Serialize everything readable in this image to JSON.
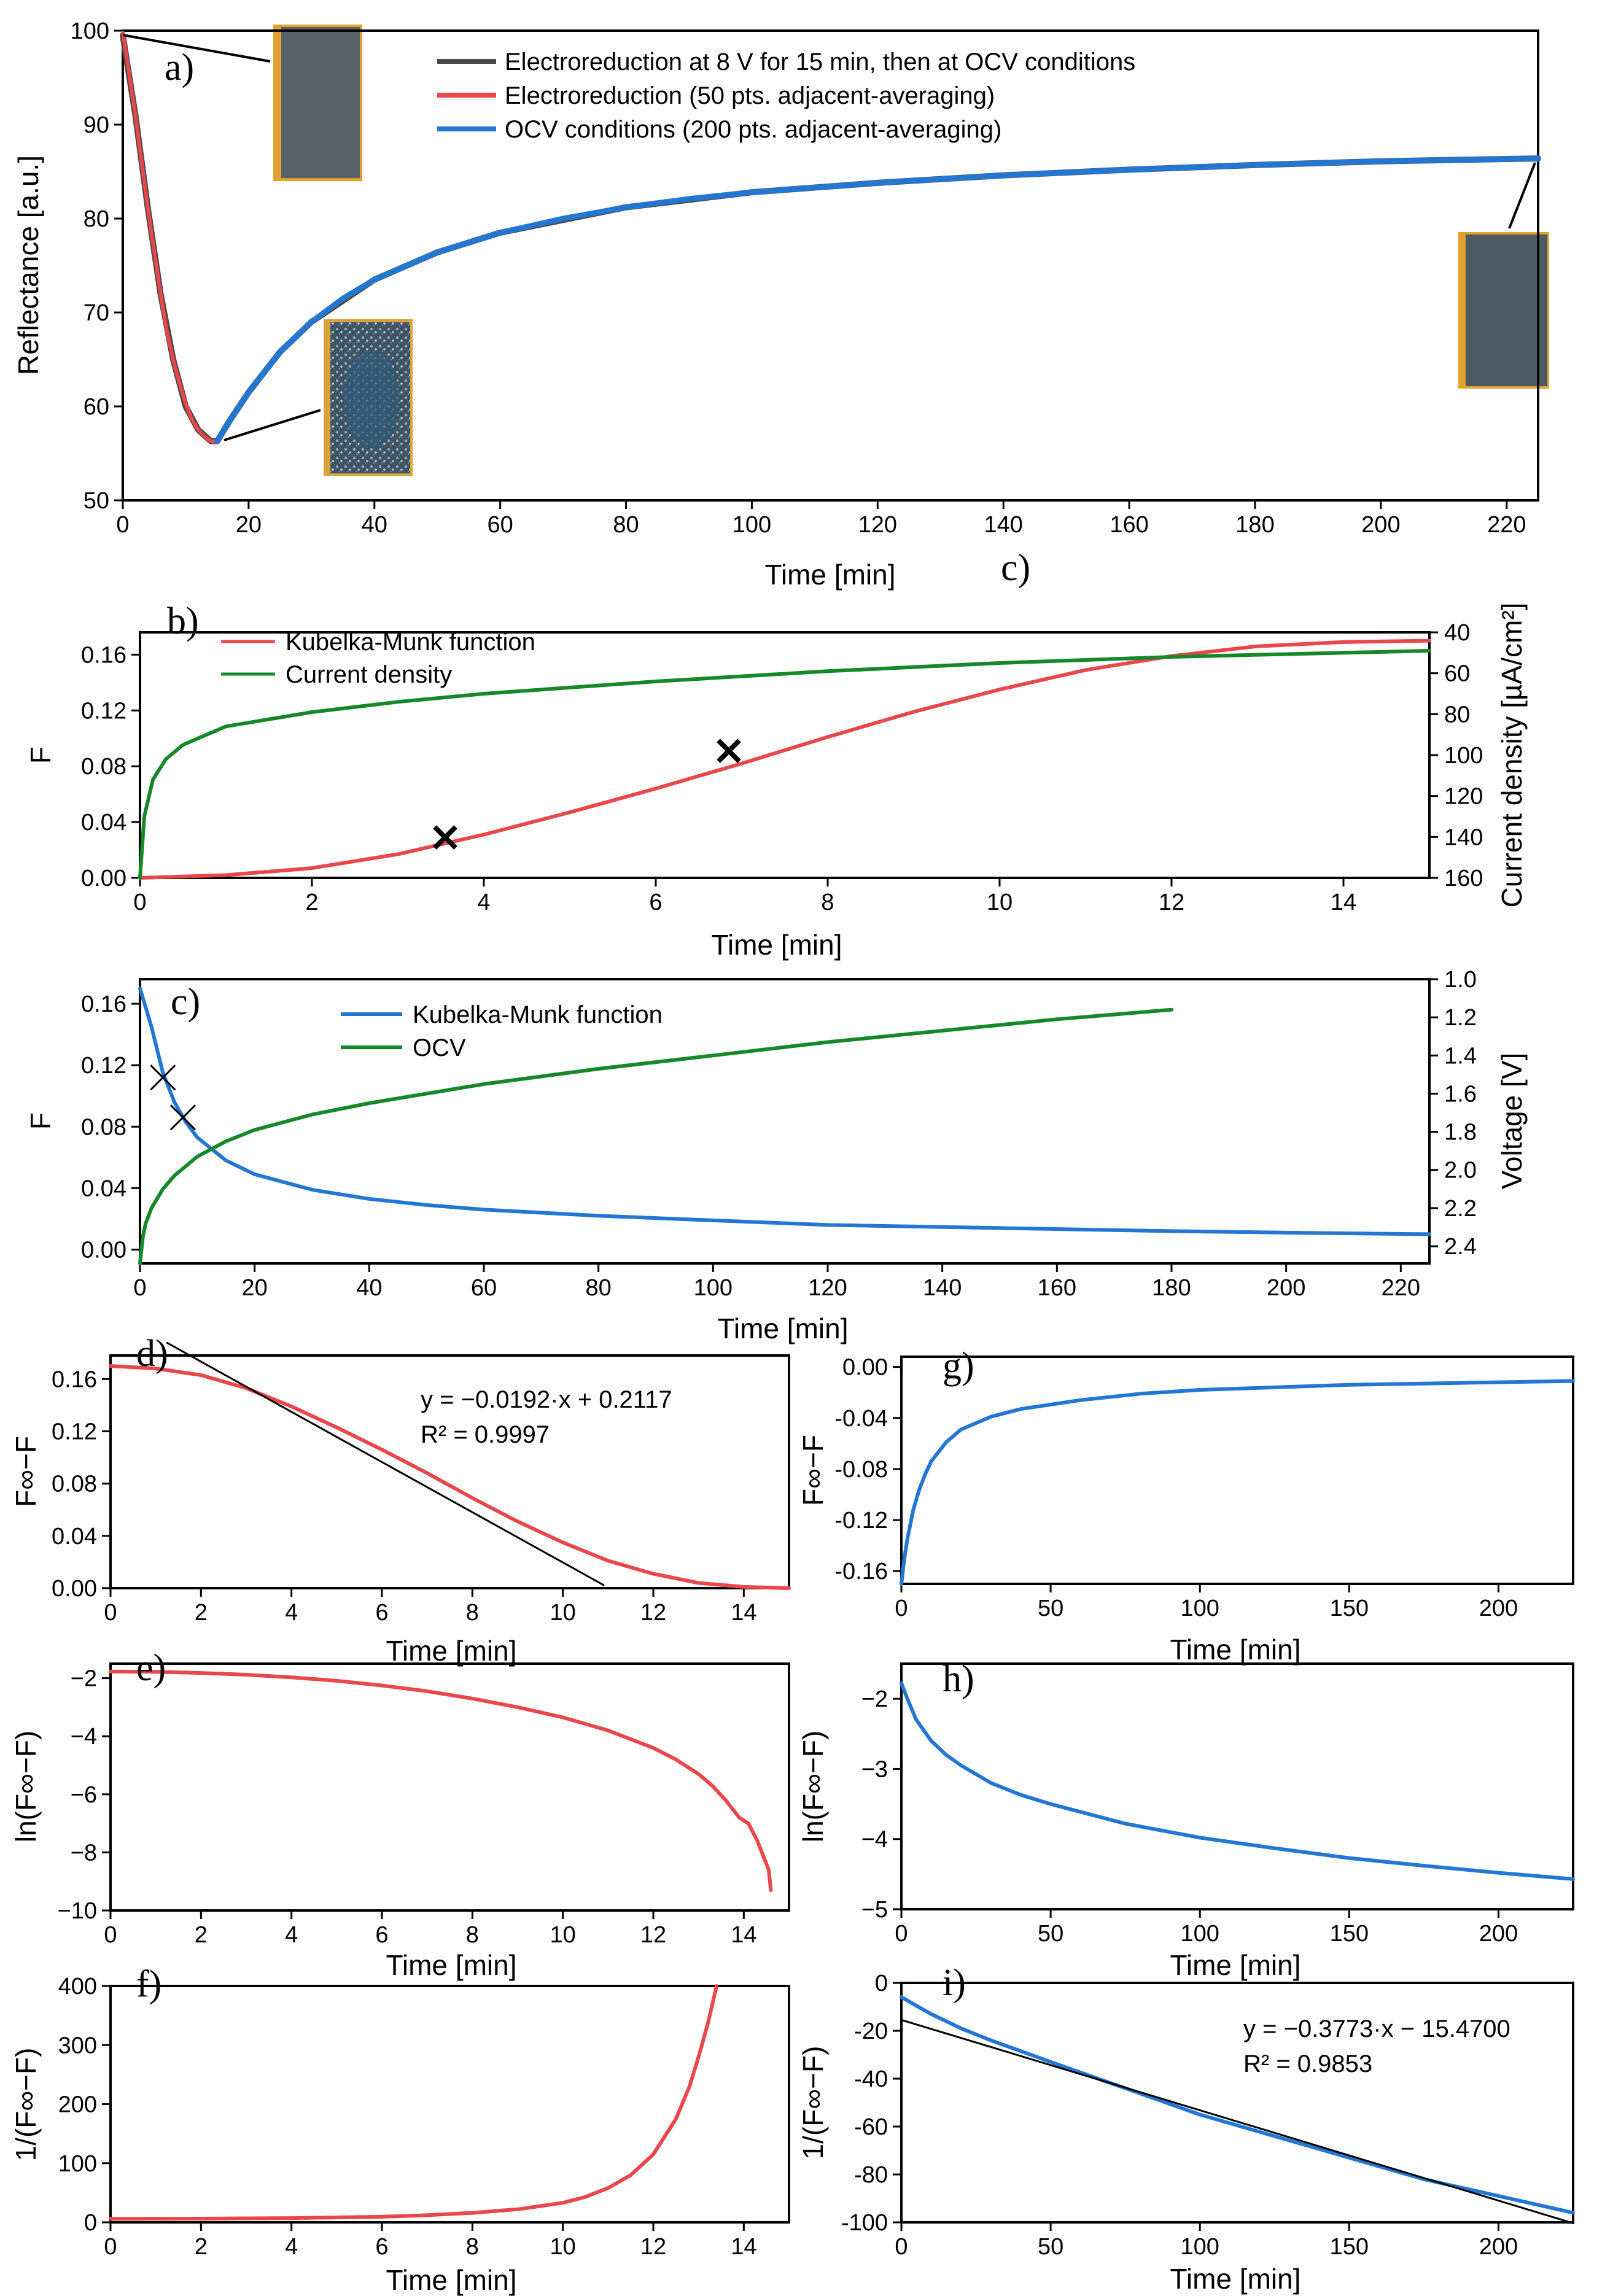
{
  "colors": {
    "red": "#e8474b",
    "blue": "#2476d3",
    "green": "#17882a",
    "gray": "#4a4a4a",
    "black": "#000000",
    "sample_bg": "#52585d",
    "sample_edge": "#e0a22c"
  },
  "chart_data": [
    {
      "id": "a",
      "panel_label": "a)",
      "type": "line",
      "xlabel": "Time [min]",
      "ylabel": "Reflectance [a.u.]",
      "xlim": [
        0,
        225
      ],
      "ylim": [
        50,
        100
      ],
      "xticks": [
        "0",
        "20",
        "40",
        "60",
        "80",
        "100",
        "120",
        "140",
        "160",
        "180",
        "200",
        "220"
      ],
      "yticks": [
        "50",
        "60",
        "70",
        "80",
        "90",
        "100"
      ],
      "legend": [
        "Electroreduction at 8 V for 15 min, then at OCV conditions",
        "Electroreduction (50 pts. adjacent-averaging)",
        "OCV conditions (200 pts. adjacent-averaging)"
      ],
      "series": [
        {
          "name": "Electroreduction at 8 V for 15 min, then at OCV conditions",
          "color": "gray",
          "x": [
            0,
            2,
            4,
            6,
            8,
            10,
            12,
            14,
            15,
            17,
            20,
            25,
            30,
            40,
            50,
            60,
            80,
            100,
            120,
            140,
            160,
            180,
            200,
            225
          ],
          "y": [
            99.5,
            91,
            81,
            72,
            65,
            60,
            57.5,
            56.3,
            56.3,
            58.5,
            61.5,
            65.8,
            69,
            73.5,
            76.4,
            78.5,
            81.2,
            82.8,
            83.8,
            84.6,
            85.2,
            85.7,
            86.1,
            86.4
          ]
        },
        {
          "name": "Electroreduction (50 pts. adjacent-averaging)",
          "color": "red",
          "x": [
            0,
            1,
            2,
            3,
            4,
            5,
            6,
            7,
            8,
            9,
            10,
            11,
            12,
            13,
            14,
            15
          ],
          "y": [
            99.8,
            95.5,
            91,
            86,
            81,
            76.5,
            72,
            68,
            65,
            62.5,
            60.3,
            58.6,
            57.5,
            56.8,
            56.3,
            56.2
          ]
        },
        {
          "name": "OCV conditions (200 pts. adjacent-averaging)",
          "color": "blue",
          "x": [
            15,
            17,
            20,
            25,
            30,
            35,
            40,
            50,
            60,
            70,
            80,
            90,
            100,
            120,
            140,
            160,
            180,
            200,
            225
          ],
          "y": [
            56.3,
            58.5,
            61.5,
            65.8,
            69,
            71.5,
            73.5,
            76.4,
            78.5,
            80,
            81.2,
            82.1,
            82.8,
            83.8,
            84.6,
            85.2,
            85.7,
            86.1,
            86.4
          ]
        }
      ]
    },
    {
      "id": "b",
      "panel_label": "b)",
      "type": "line",
      "xlabel": "Time [min]",
      "ylabel": "F",
      "ylabel_right": "Current density [µA/cm²]",
      "xlim": [
        0,
        15
      ],
      "ylim": [
        0,
        0.176
      ],
      "ylim_right": [
        160,
        40
      ],
      "xticks": [
        "0",
        "2",
        "4",
        "6",
        "8",
        "10",
        "12",
        "14"
      ],
      "yticks": [
        "0.00",
        "0.04",
        "0.08",
        "0.12",
        "0.16"
      ],
      "yticks_right": [
        "40",
        "60",
        "80",
        "100",
        "120",
        "140",
        "160"
      ],
      "legend": [
        "Kubelka-Munk function",
        "Current density"
      ],
      "series": [
        {
          "name": "Kubelka-Munk function",
          "color": "red",
          "axis": "left",
          "x": [
            0,
            1,
            2,
            3,
            4,
            5,
            6,
            7,
            8,
            9,
            10,
            11,
            12,
            13,
            14,
            15
          ],
          "y": [
            0,
            0.002,
            0.007,
            0.017,
            0.031,
            0.047,
            0.064,
            0.082,
            0.101,
            0.119,
            0.135,
            0.149,
            0.159,
            0.166,
            0.169,
            0.17
          ]
        },
        {
          "name": "Current density",
          "color": "green",
          "axis": "right",
          "x": [
            0,
            0.05,
            0.15,
            0.3,
            0.5,
            1,
            2,
            3,
            4,
            6,
            8,
            10,
            12,
            15
          ],
          "y": [
            160,
            130,
            112,
            102,
            95,
            86,
            79,
            74,
            70,
            64,
            59,
            55,
            52,
            49
          ]
        }
      ],
      "markers": [
        {
          "x": 3.55,
          "y": 0.029,
          "symbol": "x"
        },
        {
          "x": 6.85,
          "y": 0.091,
          "symbol": "x"
        }
      ]
    },
    {
      "id": "c",
      "panel_label": "c)",
      "type": "line",
      "xlabel": "Time [min]",
      "ylabel": "F",
      "ylabel_right": "Voltage [V]",
      "xlim": [
        0,
        225
      ],
      "ylim": [
        -0.009,
        0.176
      ],
      "ylim_right": [
        2.49,
        1.0
      ],
      "xticks": [
        "0",
        "20",
        "40",
        "60",
        "80",
        "100",
        "120",
        "140",
        "160",
        "180",
        "200",
        "220"
      ],
      "yticks": [
        "0.00",
        "0.04",
        "0.08",
        "0.12",
        "0.16"
      ],
      "yticks_right": [
        "1.0",
        "1.2",
        "1.4",
        "1.6",
        "1.8",
        "2.0",
        "2.2",
        "2.4"
      ],
      "legend": [
        "Kubelka-Munk function",
        "OCV"
      ],
      "series": [
        {
          "name": "Kubelka-Munk function",
          "color": "blue",
          "axis": "left",
          "x": [
            0,
            2,
            4,
            6,
            8,
            10,
            15,
            20,
            30,
            40,
            50,
            60,
            80,
            100,
            120,
            150,
            180,
            200,
            225
          ],
          "y": [
            0.17,
            0.145,
            0.115,
            0.096,
            0.083,
            0.073,
            0.058,
            0.049,
            0.039,
            0.033,
            0.029,
            0.026,
            0.022,
            0.019,
            0.016,
            0.014,
            0.012,
            0.011,
            0.01
          ]
        },
        {
          "name": "OCV",
          "color": "green",
          "axis": "right",
          "x": [
            0,
            0.5,
            1,
            2,
            4,
            6,
            10,
            15,
            20,
            30,
            40,
            60,
            80,
            100,
            120,
            140,
            160,
            180
          ],
          "y": [
            2.49,
            2.35,
            2.28,
            2.2,
            2.1,
            2.03,
            1.93,
            1.85,
            1.79,
            1.71,
            1.65,
            1.55,
            1.47,
            1.4,
            1.33,
            1.27,
            1.21,
            1.16
          ]
        }
      ],
      "markers": [
        {
          "x": 4,
          "y": 0.112,
          "symbol": "x"
        },
        {
          "x": 7.5,
          "y": 0.086,
          "symbol": "x"
        }
      ]
    },
    {
      "id": "d",
      "panel_label": "d)",
      "type": "line",
      "xlabel": "Time [min]",
      "ylabel": "F∞−F",
      "xlim": [
        0,
        15
      ],
      "ylim": [
        0,
        0.178
      ],
      "xticks": [
        "0",
        "2",
        "4",
        "6",
        "8",
        "10",
        "12",
        "14"
      ],
      "yticks": [
        "0.00",
        "0.04",
        "0.08",
        "0.12",
        "0.16"
      ],
      "fit_equation": "y = −0.0192·x + 0.2117",
      "fit_r2": "R² = 0.9997",
      "series": [
        {
          "name": "data",
          "color": "red",
          "x": [
            0,
            1,
            2,
            3,
            4,
            5,
            6,
            7,
            8,
            9,
            10,
            11,
            12,
            13,
            14,
            15
          ],
          "y": [
            0.17,
            0.168,
            0.163,
            0.153,
            0.139,
            0.123,
            0.106,
            0.088,
            0.069,
            0.051,
            0.035,
            0.021,
            0.011,
            0.004,
            0.001,
            0
          ]
        },
        {
          "name": "fit",
          "color": "black",
          "x": [
            1.25,
            10.9
          ],
          "y": [
            0.1877,
            0.0024
          ]
        }
      ]
    },
    {
      "id": "e",
      "panel_label": "e)",
      "type": "line",
      "xlabel": "Time [min]",
      "ylabel": "ln(F∞−F)",
      "xlim": [
        0,
        15
      ],
      "ylim": [
        -10,
        -1.5
      ],
      "xticks": [
        "0",
        "2",
        "4",
        "6",
        "8",
        "10",
        "12",
        "14"
      ],
      "yticks": [
        "−10",
        "−8",
        "−6",
        "−4",
        "−2"
      ],
      "series": [
        {
          "name": "data",
          "color": "red",
          "x": [
            0,
            1,
            2,
            3,
            4,
            5,
            6,
            7,
            8,
            9,
            10,
            11,
            12,
            12.5,
            13,
            13.3,
            13.6,
            13.9,
            14.1,
            14.3,
            14.4,
            14.55,
            14.6
          ],
          "y": [
            -1.77,
            -1.78,
            -1.82,
            -1.88,
            -1.97,
            -2.09,
            -2.25,
            -2.45,
            -2.7,
            -3.0,
            -3.35,
            -3.8,
            -4.4,
            -4.8,
            -5.3,
            -5.7,
            -6.2,
            -6.8,
            -7.0,
            -7.6,
            -8.0,
            -8.6,
            -9.3
          ]
        }
      ]
    },
    {
      "id": "f",
      "panel_label": "f)",
      "type": "line",
      "xlabel": "Time [min]",
      "ylabel": "1/(F∞−F)",
      "xlim": [
        0,
        15
      ],
      "ylim": [
        0,
        400
      ],
      "xticks": [
        "0",
        "2",
        "4",
        "6",
        "8",
        "10",
        "12",
        "14"
      ],
      "yticks": [
        "0",
        "100",
        "200",
        "300",
        "400"
      ],
      "series": [
        {
          "name": "data",
          "color": "red",
          "x": [
            0,
            2,
            4,
            6,
            7,
            8,
            9,
            10,
            10.5,
            11,
            11.5,
            12,
            12.5,
            12.8,
            13,
            13.2,
            13.4
          ],
          "y": [
            5.9,
            6.2,
            7.2,
            9.5,
            12,
            16,
            22,
            33,
            43,
            58,
            80,
            115,
            175,
            230,
            280,
            335,
            400
          ]
        }
      ]
    },
    {
      "id": "g",
      "panel_label": "g)",
      "type": "line",
      "xlabel": "Time [min]",
      "ylabel": "F∞−F",
      "xlim": [
        0,
        225
      ],
      "ylim": [
        -0.17,
        0.008
      ],
      "xticks": [
        "0",
        "50",
        "100",
        "150",
        "200"
      ],
      "yticks": [
        "-0.16",
        "-0.12",
        "-0.08",
        "-0.04",
        "0.00"
      ],
      "series": [
        {
          "name": "data",
          "color": "blue",
          "x": [
            0,
            1,
            2,
            4,
            6,
            8,
            10,
            15,
            20,
            30,
            40,
            60,
            80,
            100,
            125,
            150,
            175,
            200,
            225
          ],
          "y": [
            -0.17,
            -0.15,
            -0.135,
            -0.112,
            -0.096,
            -0.084,
            -0.074,
            -0.059,
            -0.049,
            -0.039,
            -0.033,
            -0.026,
            -0.021,
            -0.018,
            -0.016,
            -0.014,
            -0.013,
            -0.012,
            -0.011
          ]
        }
      ]
    },
    {
      "id": "h",
      "panel_label": "h)",
      "type": "line",
      "xlabel": "Time [min]",
      "ylabel": "ln(F∞−F)",
      "xlim": [
        0,
        225
      ],
      "ylim": [
        -5,
        -1.5
      ],
      "xticks": [
        "0",
        "50",
        "100",
        "150",
        "200"
      ],
      "yticks": [
        "−5",
        "−4",
        "−3",
        "−2"
      ],
      "series": [
        {
          "name": "data",
          "color": "blue",
          "x": [
            0,
            2,
            5,
            10,
            15,
            20,
            30,
            40,
            50,
            75,
            100,
            125,
            150,
            175,
            200,
            225
          ],
          "y": [
            -1.78,
            -2.0,
            -2.3,
            -2.6,
            -2.8,
            -2.95,
            -3.2,
            -3.37,
            -3.5,
            -3.78,
            -3.98,
            -4.13,
            -4.27,
            -4.38,
            -4.48,
            -4.57
          ]
        }
      ]
    },
    {
      "id": "i",
      "panel_label": "i)",
      "type": "line",
      "xlabel": "Time [min]",
      "ylabel": "1/(F∞−F)",
      "xlim": [
        0,
        225
      ],
      "ylim": [
        -100,
        0
      ],
      "xticks": [
        "0",
        "50",
        "100",
        "150",
        "200"
      ],
      "yticks": [
        "-100",
        "-80",
        "-60",
        "-40",
        "-20",
        "0"
      ],
      "fit_equation": "y = −0.3773·x − 15.4700",
      "fit_r2": "R² = 0.9853",
      "series": [
        {
          "name": "data",
          "color": "blue",
          "x": [
            0,
            5,
            10,
            20,
            30,
            50,
            75,
            100,
            125,
            150,
            175,
            200,
            225
          ],
          "y": [
            -5.9,
            -9.5,
            -13,
            -19,
            -24,
            -33,
            -44,
            -55,
            -64,
            -73,
            -82,
            -89,
            -96
          ]
        },
        {
          "name": "fit",
          "color": "black",
          "x": [
            0,
            225
          ],
          "y": [
            -15.47,
            -100.36
          ]
        }
      ]
    }
  ],
  "insets": [
    {
      "id": "inset-a-start",
      "title": "sample at t = 0 min"
    },
    {
      "id": "inset-a-min",
      "title": "sample after electroreduction"
    },
    {
      "id": "inset-a-end",
      "title": "sample at end of OCV"
    }
  ],
  "extra_labels": {
    "stray_c": "c)"
  }
}
